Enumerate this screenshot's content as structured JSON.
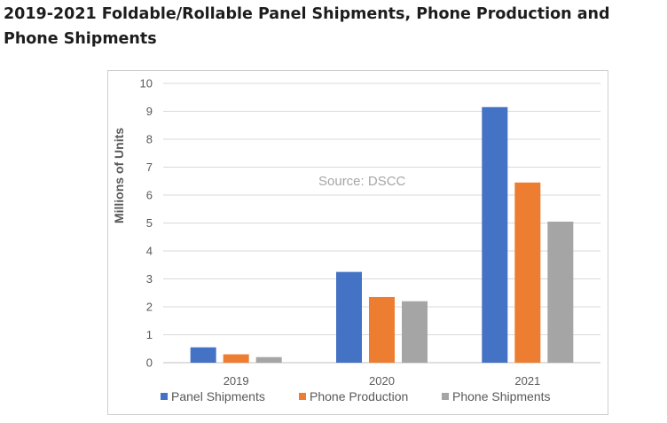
{
  "page": {
    "heading": "2019-2021 Foldable/Rollable Panel Shipments, Phone Production and Phone Shipments"
  },
  "chart_data": {
    "type": "bar",
    "categories": [
      "2019",
      "2020",
      "2021"
    ],
    "series": [
      {
        "name": "Panel Shipments",
        "values": [
          0.55,
          3.25,
          9.15
        ],
        "color": "#4472c4"
      },
      {
        "name": "Phone Production",
        "values": [
          0.3,
          2.35,
          6.45
        ],
        "color": "#ed7d31"
      },
      {
        "name": "Phone Shipments",
        "values": [
          0.2,
          2.2,
          5.05
        ],
        "color": "#a5a5a5"
      }
    ],
    "title": "",
    "xlabel": "",
    "ylabel": "Millions of Units",
    "ylim": [
      0,
      10
    ],
    "yticks": [
      "0",
      "1",
      "2",
      "3",
      "4",
      "5",
      "6",
      "7",
      "8",
      "9",
      "10"
    ],
    "grid": true,
    "legend_position": "bottom",
    "annotation": "Source: DSCC"
  }
}
